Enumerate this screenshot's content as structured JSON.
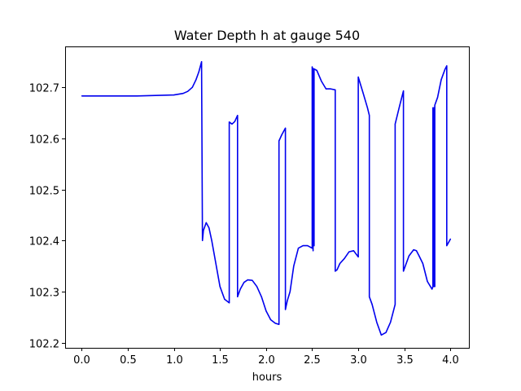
{
  "chart_data": {
    "type": "line",
    "title": "Water Depth h at gauge 540",
    "xlabel": "hours",
    "ylabel": "",
    "xlim": [
      -0.18,
      4.2
    ],
    "ylim": [
      102.19,
      102.78
    ],
    "xticks": [
      0.0,
      0.5,
      1.0,
      1.5,
      2.0,
      2.5,
      3.0,
      3.5,
      4.0
    ],
    "xtick_labels": [
      "0.0",
      "0.5",
      "1.0",
      "1.5",
      "2.0",
      "2.5",
      "3.0",
      "3.5",
      "4.0"
    ],
    "yticks": [
      102.2,
      102.3,
      102.4,
      102.5,
      102.6,
      102.7
    ],
    "ytick_labels": [
      "102.2",
      "102.3",
      "102.4",
      "102.5",
      "102.6",
      "102.7"
    ],
    "grid": false,
    "legend": "none",
    "colors": {
      "line": "#0000ee",
      "axes": "#000000",
      "background": "#ffffff"
    },
    "series": [
      {
        "x": [
          0.0,
          0.2,
          0.4,
          0.6,
          0.8,
          1.0,
          1.1,
          1.15,
          1.2,
          1.24,
          1.27,
          1.3,
          1.31,
          1.32,
          1.35,
          1.38,
          1.41,
          1.45,
          1.5,
          1.55,
          1.6,
          1.6,
          1.63,
          1.66,
          1.69,
          1.69,
          1.72,
          1.76,
          1.8,
          1.85,
          1.9,
          1.95,
          2.0,
          2.05,
          2.1,
          2.14,
          2.14,
          2.17,
          2.21,
          2.21,
          2.23,
          2.26,
          2.3,
          2.35,
          2.4,
          2.45,
          2.5,
          2.5,
          2.51,
          2.51,
          2.52,
          2.52,
          2.55,
          2.6,
          2.65,
          2.7,
          2.75,
          2.75,
          2.77,
          2.8,
          2.85,
          2.9,
          2.95,
          3.0,
          3.0,
          3.05,
          3.1,
          3.12,
          3.12,
          3.15,
          3.2,
          3.25,
          3.3,
          3.35,
          3.4,
          3.4,
          3.45,
          3.49,
          3.49,
          3.52,
          3.55,
          3.6,
          3.63,
          3.66,
          3.7,
          3.75,
          3.8,
          3.81,
          3.81,
          3.82,
          3.82,
          3.83,
          3.83,
          3.86,
          3.9,
          3.94,
          3.96,
          3.96,
          4.0
        ],
        "y": [
          102.683,
          102.683,
          102.683,
          102.683,
          102.684,
          102.685,
          102.688,
          102.692,
          102.7,
          102.715,
          102.73,
          102.75,
          102.4,
          102.42,
          102.435,
          102.425,
          102.4,
          102.36,
          102.31,
          102.285,
          102.278,
          102.632,
          102.628,
          102.633,
          102.645,
          102.29,
          102.305,
          102.318,
          102.323,
          102.322,
          102.31,
          102.29,
          102.262,
          102.245,
          102.238,
          102.236,
          102.595,
          102.607,
          102.62,
          102.265,
          102.282,
          102.3,
          102.35,
          102.385,
          102.39,
          102.39,
          102.385,
          102.74,
          102.38,
          102.737,
          102.39,
          102.736,
          102.733,
          102.712,
          102.697,
          102.697,
          102.695,
          102.34,
          102.343,
          102.355,
          102.365,
          102.378,
          102.38,
          102.368,
          102.72,
          102.69,
          102.66,
          102.645,
          102.29,
          102.275,
          102.24,
          102.215,
          102.22,
          102.24,
          102.275,
          102.628,
          102.665,
          102.693,
          102.34,
          102.355,
          102.37,
          102.382,
          102.38,
          102.37,
          102.355,
          102.32,
          102.305,
          102.31,
          102.66,
          102.31,
          102.66,
          102.31,
          102.665,
          102.68,
          102.715,
          102.735,
          102.742,
          102.39,
          102.403
        ]
      }
    ]
  }
}
